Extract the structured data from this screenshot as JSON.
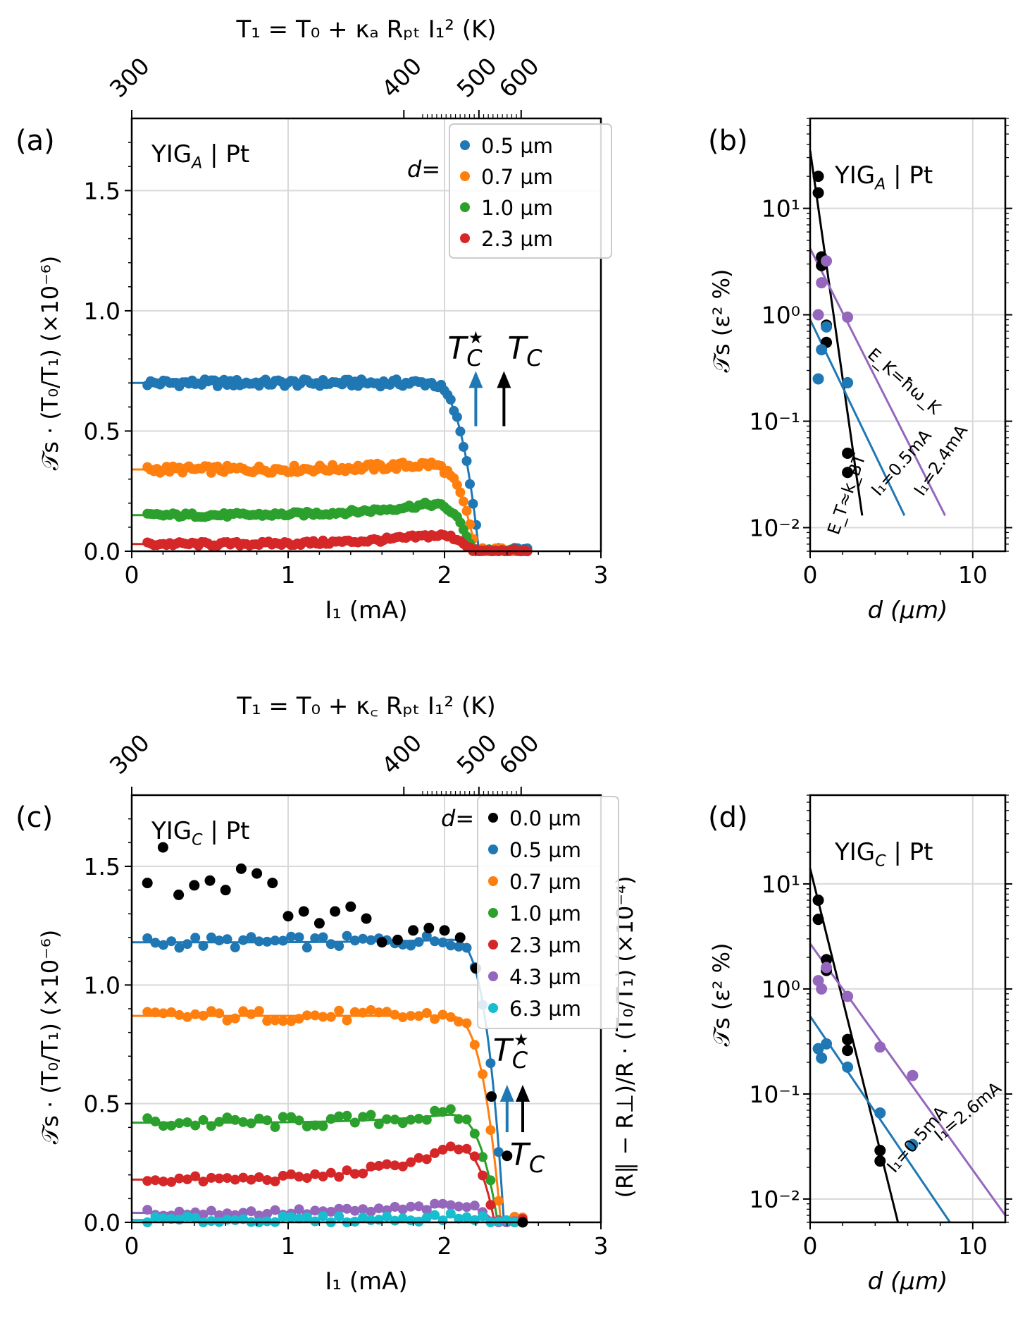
{
  "colors": {
    "blue": "#1f77b4",
    "orange": "#ff7f0e",
    "green": "#2ca02c",
    "red": "#d62728",
    "purple": "#9467bd",
    "cyan": "#17becf",
    "black": "#000000"
  },
  "chart_data": [
    {
      "panel": "a",
      "type": "scatter",
      "panel_label": "(a)",
      "sample_label": "YIG",
      "sample_sub": "A",
      "sample_rest": " | Pt",
      "xlabel": "I₁ (mA)",
      "ylabel": "𝒯s · (T₀/T₁)  (×10⁻⁶)",
      "top_axis_label": "T₁ = T₀ + κₐ Rₚₜ I₁² (K)",
      "top_ticks": [
        "300",
        "400",
        "500",
        "600"
      ],
      "xlim": [
        0,
        3
      ],
      "ylim": [
        0,
        1.8
      ],
      "xticks": [
        "0",
        "1",
        "2",
        "3"
      ],
      "yticks": [
        "0.0",
        "0.5",
        "1.0",
        "1.5"
      ],
      "legend_title": "d=",
      "series": [
        {
          "name": "0.5 µm",
          "color": "blue",
          "fit": 0.7,
          "fit_t": 2.22,
          "bump": 0.0
        },
        {
          "name": "0.7 µm",
          "color": "orange",
          "fit": 0.34,
          "fit_t": 2.2,
          "bump": 0.04
        },
        {
          "name": "1.0 µm",
          "color": "green",
          "fit": 0.15,
          "fit_t": 2.18,
          "bump": 0.08
        },
        {
          "name": "2.3 µm",
          "color": "red",
          "fit": 0.03,
          "fit_t": 2.18,
          "bump": 0.06
        }
      ],
      "arrows": [
        {
          "label": "T",
          "sup": "★",
          "sub": "C",
          "color": "blue",
          "x": 2.2
        },
        {
          "label": "T",
          "sub": "C",
          "color": "black",
          "x": 2.38
        }
      ]
    },
    {
      "panel": "b",
      "type": "scatter",
      "panel_label": "(b)",
      "sample_label": "YIG",
      "sample_sub": "A",
      "sample_rest": " | Pt",
      "xlabel": "d (µm)",
      "ylabel": "𝒯s (ε² %)",
      "yscale": "log",
      "xlim": [
        0,
        12
      ],
      "ylim": [
        0.006,
        70
      ],
      "xticks": [
        "0",
        "10"
      ],
      "yticks": [
        "10⁻²",
        "10⁻¹",
        "10⁰",
        "10¹"
      ],
      "series": [
        {
          "color": "black",
          "x": [
            0.5,
            0.5,
            0.7,
            0.7,
            1.0,
            1.0,
            2.3,
            2.3
          ],
          "y": [
            20,
            14,
            3.5,
            2.9,
            0.8,
            0.55,
            0.05,
            0.033
          ]
        },
        {
          "color": "purple",
          "x": [
            0.5,
            0.7,
            1.0,
            2.3
          ],
          "y": [
            1.0,
            2.0,
            3.2,
            0.95
          ]
        },
        {
          "color": "blue",
          "x": [
            0.5,
            0.7,
            1.0,
            2.3
          ],
          "y": [
            0.25,
            0.47,
            0.77,
            0.23
          ]
        }
      ],
      "fits": [
        {
          "color": "black",
          "x": [
            0,
            3.2
          ],
          "y": [
            35,
            0.013
          ]
        },
        {
          "color": "purple",
          "x": [
            0,
            8.3
          ],
          "y": [
            4.2,
            0.013
          ]
        },
        {
          "color": "blue",
          "x": [
            0,
            5.8
          ],
          "y": [
            0.9,
            0.013
          ]
        }
      ],
      "annotations": [
        {
          "text": "E_K=ħω_K",
          "color": "purple"
        },
        {
          "text": "I₁=2.4mA",
          "color": "purple"
        },
        {
          "text": "I₁=0.5mA",
          "color": "blue"
        },
        {
          "text": "E_T≈k_BT",
          "color": "black"
        }
      ]
    },
    {
      "panel": "c",
      "type": "scatter",
      "panel_label": "(c)",
      "sample_label": "YIG",
      "sample_sub": "C",
      "sample_rest": " | Pt",
      "xlabel": "I₁ (mA)",
      "ylabel": "𝒯s · (T₀/T₁)  (×10⁻⁶)",
      "right_ylabel": "(R∥ − R⊥)/R · (T₀/T₁) (×10⁻⁴)",
      "top_axis_label": "T₁ = T₀ + κ꜀ Rₚₜ I₁² (K)",
      "top_ticks": [
        "300",
        "400",
        "500",
        "600"
      ],
      "xlim": [
        0,
        3
      ],
      "ylim": [
        0,
        1.8
      ],
      "xticks": [
        "0",
        "1",
        "2",
        "3"
      ],
      "yticks": [
        "0.0",
        "0.5",
        "1.0",
        "1.5"
      ],
      "legend_title": "d=",
      "series": [
        {
          "name": "0.0 µm",
          "color": "black",
          "fit": null
        },
        {
          "name": "0.5 µm",
          "color": "blue",
          "fit": 1.18,
          "fit_t": 2.38,
          "bump": 0.02
        },
        {
          "name": "0.7 µm",
          "color": "orange",
          "fit": 0.87,
          "fit_t": 2.36,
          "bump": 0.0
        },
        {
          "name": "1.0 µm",
          "color": "green",
          "fit": 0.42,
          "fit_t": 2.34,
          "bump": 0.06
        },
        {
          "name": "2.3 µm",
          "color": "red",
          "fit": 0.18,
          "fit_t": 2.32,
          "bump": 0.22
        },
        {
          "name": "4.3 µm",
          "color": "purple",
          "fit": 0.04,
          "fit_t": 2.32,
          "bump": 0.05
        },
        {
          "name": "6.3 µm",
          "color": "cyan",
          "fit": 0.01,
          "fit_t": 2.32,
          "bump": 0.02
        }
      ],
      "black_points": {
        "x": [
          0.1,
          0.2,
          0.3,
          0.4,
          0.5,
          0.6,
          0.7,
          0.8,
          0.9,
          1.0,
          1.1,
          1.2,
          1.3,
          1.4,
          1.5,
          1.6,
          1.7,
          1.8,
          1.9,
          2.0,
          2.1,
          2.2,
          2.3,
          2.4,
          2.5
        ],
        "y": [
          1.43,
          1.58,
          1.38,
          1.42,
          1.44,
          1.4,
          1.49,
          1.47,
          1.43,
          1.29,
          1.31,
          1.26,
          1.31,
          1.33,
          1.28,
          1.18,
          1.19,
          1.23,
          1.24,
          1.23,
          1.2,
          1.07,
          0.53,
          0.28,
          0.0
        ]
      },
      "arrows": [
        {
          "label": "T",
          "sup": "★",
          "sub": "C",
          "color": "blue",
          "x": 2.4
        },
        {
          "label": "T",
          "sub": "C",
          "color": "black",
          "x": 2.5
        }
      ]
    },
    {
      "panel": "d",
      "type": "scatter",
      "panel_label": "(d)",
      "sample_label": "YIG",
      "sample_sub": "C",
      "sample_rest": " | Pt",
      "xlabel": "d (µm)",
      "ylabel": "𝒯s (ε² %)",
      "yscale": "log",
      "xlim": [
        0,
        12
      ],
      "ylim": [
        0.006,
        70
      ],
      "xticks": [
        "0",
        "10"
      ],
      "yticks": [
        "10⁻²",
        "10⁻¹",
        "10⁰",
        "10¹"
      ],
      "series": [
        {
          "color": "black",
          "x": [
            0.5,
            0.5,
            1.0,
            1.0,
            2.3,
            2.3,
            4.3,
            4.3
          ],
          "y": [
            7,
            4.6,
            1.9,
            1.5,
            0.33,
            0.26,
            0.029,
            0.023
          ]
        },
        {
          "color": "purple",
          "x": [
            0.5,
            0.7,
            1.0,
            2.3,
            4.3,
            6.3
          ],
          "y": [
            1.2,
            1.0,
            1.6,
            0.85,
            0.28,
            0.15
          ]
        },
        {
          "color": "blue",
          "x": [
            0.5,
            0.7,
            1.0,
            2.3,
            4.3,
            6.3
          ],
          "y": [
            0.27,
            0.22,
            0.3,
            0.18,
            0.066,
            0.033
          ]
        }
      ],
      "fits": [
        {
          "color": "black",
          "x": [
            0,
            5.4
          ],
          "y": [
            14,
            0.006
          ]
        },
        {
          "color": "purple",
          "x": [
            0,
            12
          ],
          "y": [
            2.7,
            0.007
          ]
        },
        {
          "color": "blue",
          "x": [
            0,
            8.6
          ],
          "y": [
            0.55,
            0.006
          ]
        }
      ],
      "annotations": [
        {
          "text": "I₁=2.6mA",
          "color": "purple"
        },
        {
          "text": "I₁=0.5mA",
          "color": "blue"
        }
      ]
    }
  ]
}
